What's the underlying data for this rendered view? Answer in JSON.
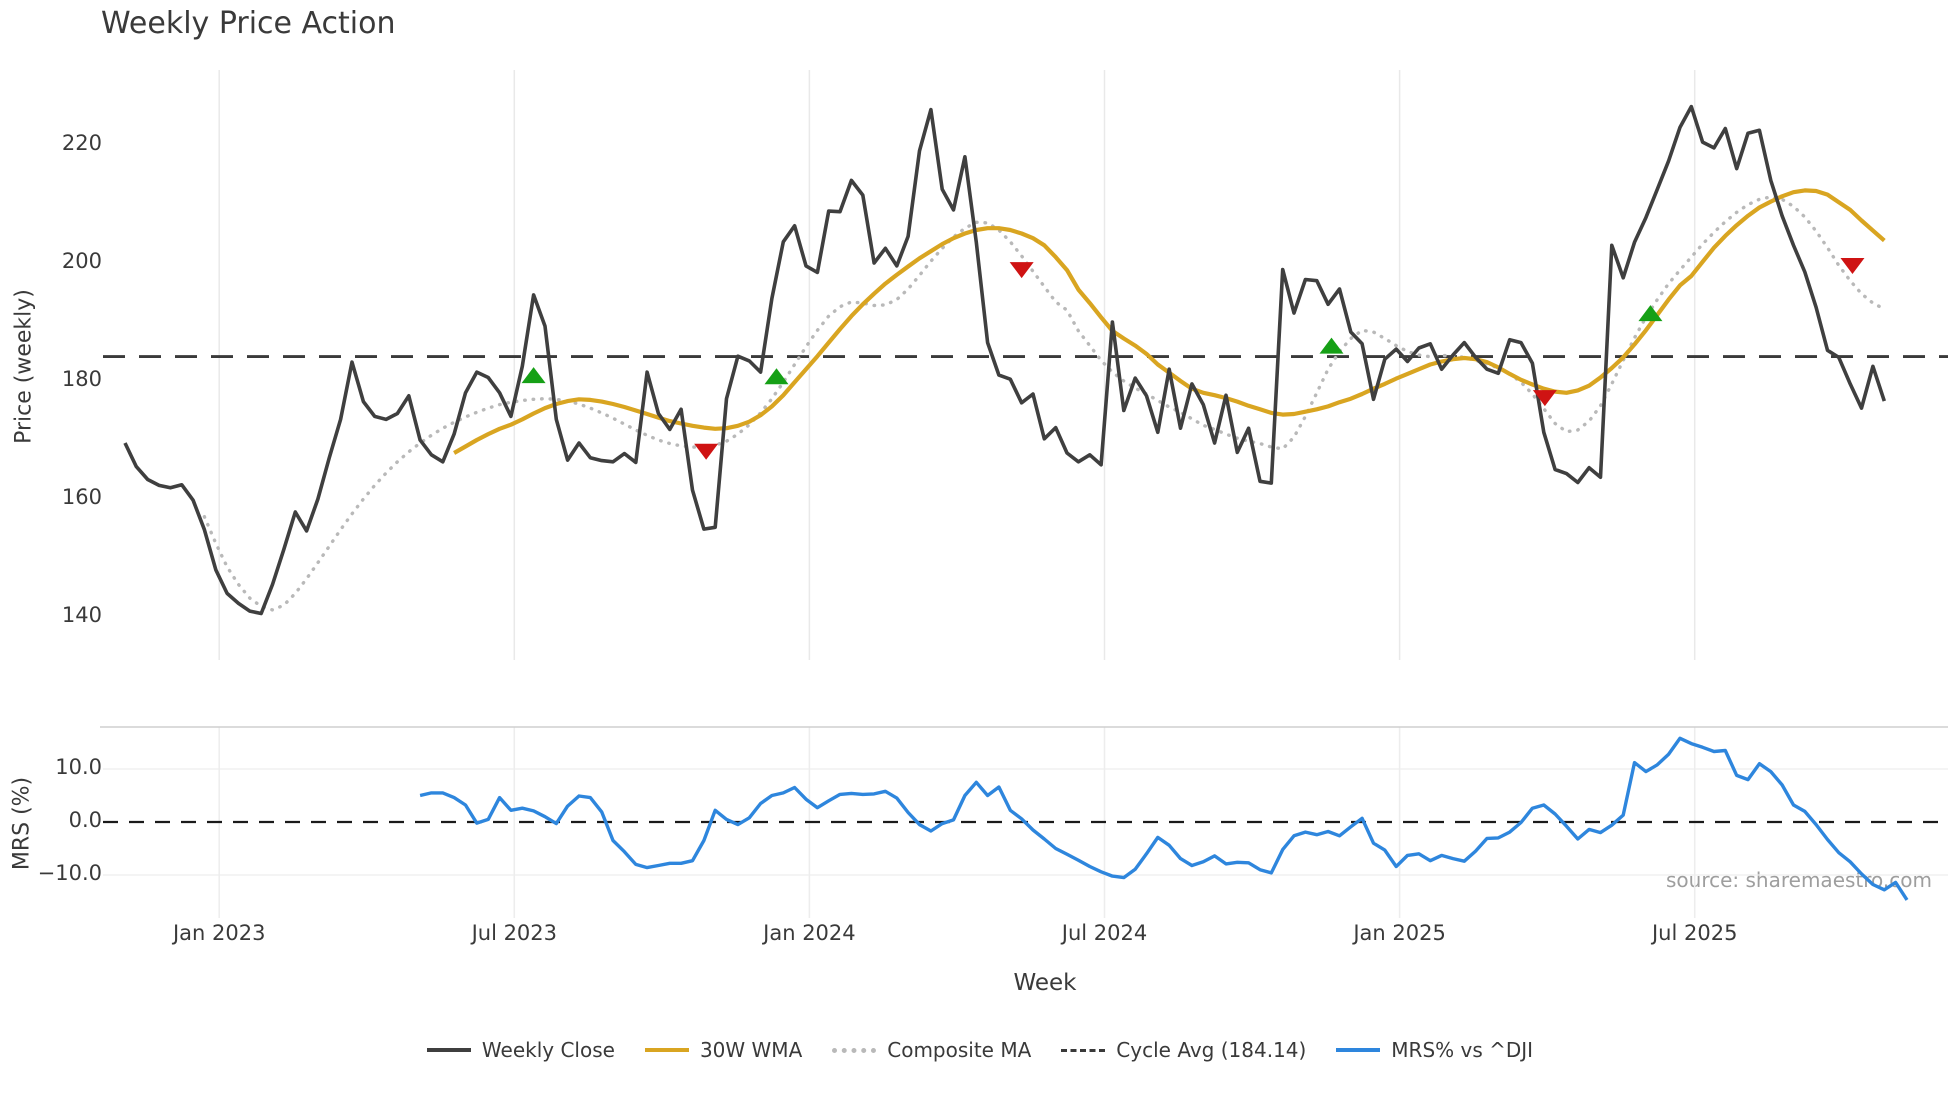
{
  "title": "Weekly Price Action",
  "source_note": "source: sharemaestro.com",
  "colors": {
    "close": "#3f3f3f",
    "wma": "#d9a521",
    "composite": "#b9b9b9",
    "cycle": "#3a3a3a",
    "mrs": "#2e86dd",
    "buy": "#16a016",
    "sell": "#cf1313",
    "grid": "#e9e9e9",
    "subgrid": "#ededed",
    "spine": "#cfcfcf",
    "zero": "#1a1a1a"
  },
  "legend": [
    {
      "label": "Weekly Close",
      "style": "solid",
      "color": "#3f3f3f"
    },
    {
      "label": "30W WMA",
      "style": "solid",
      "color": "#d9a521"
    },
    {
      "label": "Composite MA",
      "style": "dotted",
      "color": "#b9b9b9"
    },
    {
      "label": "Cycle Avg (184.14)",
      "style": "dashed",
      "color": "#3a3a3a"
    },
    {
      "label": "MRS% vs ^DJI",
      "style": "solid",
      "color": "#2e86dd"
    }
  ],
  "chart_data": {
    "type": "line",
    "title": "Weekly Price Action",
    "xlabel": "Week",
    "x_axis": {
      "tick_labels": [
        "Jan 2023",
        "Jul 2023",
        "Jan 2024",
        "Jul 2024",
        "Jan 2025",
        "Jul 2025"
      ],
      "tick_weeks": [
        8.3,
        34.3,
        60.3,
        86.3,
        112.3,
        138.3
      ]
    },
    "price_axis": {
      "label": "Price (weekly)",
      "ticks": [
        140,
        160,
        180,
        200,
        220
      ],
      "range": [
        132,
        233
      ],
      "grid": false
    },
    "mrs_axis": {
      "label": "MRS (%)",
      "ticks": [
        {
          "label": "10.0",
          "value": 10
        },
        {
          "label": "0.0",
          "value": 0
        },
        {
          "label": "−10.0",
          "value": -10
        }
      ],
      "range": [
        -18,
        18
      ],
      "grid": true
    },
    "cycle_avg": 184.14,
    "series": [
      {
        "name": "Weekly Close",
        "panel": "price",
        "start_week": 0,
        "values": [
          169.5,
          165.5,
          163.3,
          162.3,
          161.9,
          162.4,
          159.8,
          154.8,
          148,
          144,
          142.3,
          141,
          140.6,
          145.5,
          151.5,
          157.8,
          154.6,
          160,
          167,
          173.5,
          183.2,
          176.5,
          174,
          173.5,
          174.5,
          177.5,
          170,
          167.5,
          166.3,
          171,
          178,
          181.5,
          180.6,
          178,
          174,
          182.5,
          194.6,
          189.3,
          173.5,
          166.6,
          169.5,
          167,
          166.5,
          166.3,
          167.7,
          166.2,
          181.5,
          174.5,
          171.8,
          175.2,
          161.5,
          154.9,
          155.2,
          177,
          184.2,
          183.4,
          181.5,
          194,
          203.6,
          206.3,
          199.5,
          198.4,
          208.8,
          208.7,
          214,
          211.5,
          200,
          202.5,
          199.5,
          204.5,
          219,
          226,
          212.5,
          209,
          218,
          203.5,
          186.5,
          181,
          180.3,
          176.3,
          177.8,
          170.2,
          172.1,
          167.8,
          166.3,
          167.5,
          165.8,
          190,
          175,
          180.5,
          177.5,
          171.3,
          182,
          172,
          179.5,
          176,
          169.5,
          177.6,
          167.9,
          172,
          163,
          162.7,
          198.9,
          191.5,
          197.2,
          197,
          193,
          195.6,
          188.3,
          186.3,
          176.9,
          183.7,
          185.4,
          183.3,
          185.6,
          186.3,
          182,
          184.4,
          186.5,
          184,
          182,
          181.3,
          187,
          186.5,
          183,
          171.3,
          165,
          164.3,
          162.8,
          165.3,
          163.7,
          203,
          197.5,
          203.5,
          207.7,
          212.5,
          217.3,
          223,
          226.5,
          220.5,
          219.5,
          222.8,
          216,
          222,
          222.5,
          214,
          208,
          203,
          198.5,
          192.5,
          185.2,
          184,
          179.5,
          175.4,
          182.5,
          176.6
        ]
      },
      {
        "name": "30W WMA",
        "panel": "price",
        "start_week": 29,
        "values": [
          167.8,
          168.9,
          170,
          171,
          171.9,
          172.6,
          173.5,
          174.5,
          175.4,
          176.1,
          176.6,
          176.9,
          176.8,
          176.5,
          176.1,
          175.6,
          175,
          174.4,
          173.8,
          173.2,
          172.8,
          172.4,
          172.1,
          171.9,
          172,
          172.4,
          173.1,
          174.2,
          175.7,
          177.6,
          179.8,
          182,
          184.2,
          186.5,
          188.8,
          191,
          193,
          194.8,
          196.5,
          198,
          199.4,
          200.8,
          202,
          203.2,
          204.2,
          205,
          205.6,
          205.9,
          205.9,
          205.6,
          205,
          204.2,
          203,
          201,
          198.8,
          195.5,
          193.2,
          190.8,
          188.5,
          187.2,
          186,
          184.6,
          182.8,
          181.4,
          180,
          178.7,
          178,
          177.6,
          177.1,
          176.5,
          175.8,
          175.2,
          174.6,
          174.3,
          174.4,
          174.8,
          175.2,
          175.7,
          176.4,
          177,
          177.8,
          178.7,
          179.5,
          180.4,
          181.2,
          182,
          182.8,
          183.3,
          183.7,
          183.9,
          183.7,
          183.2,
          182.3,
          181.2,
          180.2,
          179.4,
          178.7,
          178.2,
          178,
          178.4,
          179.2,
          180.6,
          182.2,
          184,
          186.2,
          188.6,
          191.2,
          193.8,
          196.2,
          197.8,
          200.2,
          202.6,
          204.6,
          206.4,
          208,
          209.4,
          210.4,
          211.3,
          212,
          212.3,
          212.2,
          211.6,
          210.3,
          209,
          207.2,
          205.5,
          203.8
        ]
      },
      {
        "name": "Composite MA",
        "panel": "price",
        "start_week": 7,
        "values": [
          157,
          152.5,
          148.5,
          145.5,
          143.2,
          141.8,
          141.2,
          142,
          144,
          146.5,
          149.2,
          152,
          154.8,
          157.5,
          160,
          162.3,
          164.4,
          166.3,
          168,
          169.5,
          170.8,
          172,
          173,
          173.9,
          174.7,
          175.4,
          176,
          176.4,
          176.7,
          176.9,
          177,
          176.9,
          176.6,
          176.1,
          175.4,
          174.6,
          173.7,
          172.7,
          171.7,
          170.8,
          170,
          169.4,
          169,
          168.8,
          168.8,
          169.1,
          169.8,
          171,
          172.6,
          174.6,
          177,
          179.8,
          182.8,
          185.8,
          188.6,
          191,
          192.6,
          193.4,
          193.2,
          192.8,
          192.9,
          193.8,
          195.6,
          197.9,
          200.3,
          202.5,
          204.4,
          205.9,
          206.9,
          206.8,
          205.6,
          203.6,
          201.2,
          198.6,
          196,
          193.4,
          192,
          188.5,
          186,
          183.5,
          181.5,
          180,
          178.8,
          177.8,
          176.7,
          175.6,
          174.7,
          173.6,
          172.5,
          171.8,
          171,
          170.3,
          169.8,
          169.4,
          168.8,
          168.5,
          170.5,
          174,
          178,
          182,
          185,
          187.2,
          188.6,
          188.3,
          187.2,
          186,
          185,
          184.4,
          184.1,
          184.3,
          184.3,
          184,
          183.5,
          182.9,
          182.2,
          181.2,
          179.8,
          177.8,
          175.3,
          172.8,
          171.4,
          171.7,
          173.2,
          175.8,
          179.5,
          183.5,
          187.3,
          190.8,
          193.8,
          196.5,
          198.8,
          201,
          203.2,
          205.2,
          207,
          208.6,
          209.9,
          210.8,
          211.2,
          210.8,
          209.6,
          207.8,
          205.4,
          202.6,
          199.6,
          197,
          194.8,
          193.2,
          192.2
        ]
      },
      {
        "name": "MRS% vs ^DJI",
        "panel": "mrs",
        "start_week": 26,
        "values": [
          5,
          5.5,
          5.5,
          4.6,
          3.2,
          -0.2,
          0.5,
          4.6,
          2.2,
          2.6,
          2.1,
          1,
          -0.3,
          3,
          4.9,
          4.6,
          1.9,
          -3.5,
          -5.6,
          -8,
          -8.6,
          -8.2,
          -7.8,
          -7.8,
          -7.3,
          -3.5,
          2.2,
          0.5,
          -0.5,
          0.8,
          3.5,
          5,
          5.5,
          6.5,
          4.3,
          2.7,
          4,
          5.2,
          5.4,
          5.2,
          5.3,
          5.8,
          4.5,
          1.8,
          -0.5,
          -1.7,
          -0.3,
          0.4,
          5,
          7.5,
          5,
          6.6,
          2.2,
          0.6,
          -1.5,
          -3.2,
          -5,
          -6.1,
          -7.2,
          -8.4,
          -9.4,
          -10.2,
          -10.5,
          -8.9,
          -6,
          -2.9,
          -4.4,
          -6.9,
          -8.2,
          -7.5,
          -6.4,
          -7.9,
          -7.6,
          -7.7,
          -9,
          -9.6,
          -5.2,
          -2.6,
          -1.9,
          -2.4,
          -1.8,
          -2.6,
          -0.9,
          0.7,
          -4,
          -5.3,
          -8.4,
          -6.3,
          -6,
          -7.3,
          -6.3,
          -6.9,
          -7.4,
          -5.5,
          -3.1,
          -3,
          -1.9,
          -0.1,
          2.6,
          3.2,
          1.5,
          -0.8,
          -3.2,
          -1.4,
          -2,
          -0.6,
          1.3,
          11.2,
          9.5,
          10.8,
          12.8,
          15.8,
          14.8,
          14.1,
          13.3,
          13.5,
          8.8,
          8,
          11,
          9.5,
          7,
          3.2,
          2,
          -0.5,
          -3.3,
          -5.8,
          -7.5,
          -9.8,
          -11.8,
          -12.8,
          -11.4,
          -14.7
        ]
      }
    ],
    "markers": {
      "buy_signals": [
        {
          "week": 36,
          "value": 181
        },
        {
          "week": 57.4,
          "value": 180.8
        },
        {
          "week": 106.3,
          "value": 186
        },
        {
          "week": 134.4,
          "value": 191.5
        }
      ],
      "sell_signals": [
        {
          "week": 51.2,
          "value": 168
        },
        {
          "week": 79,
          "value": 198.8
        },
        {
          "week": 125.1,
          "value": 177.1
        },
        {
          "week": 152.2,
          "value": 199.5
        }
      ]
    }
  }
}
